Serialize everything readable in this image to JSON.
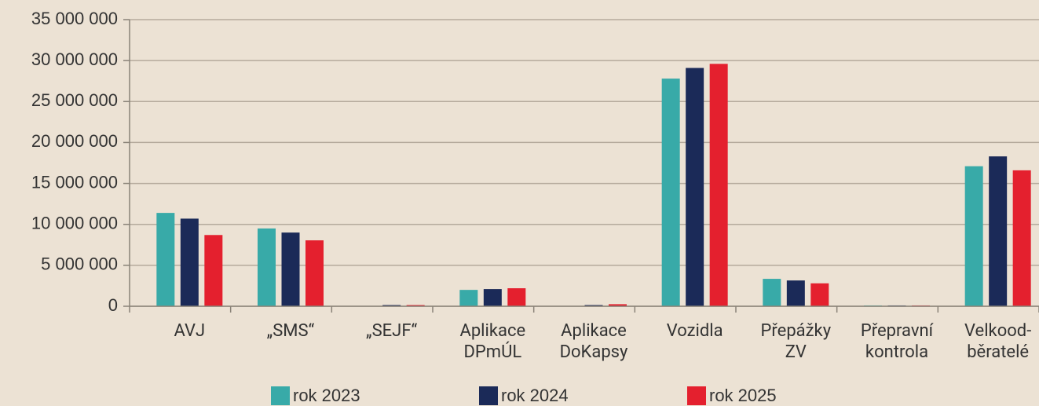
{
  "chart_data": {
    "type": "bar",
    "categories": [
      "AVJ",
      "„SMS“",
      "„SEJF“",
      "Aplikace\nDPmÚL",
      "Aplikace\nDoKapsy",
      "Vozidla",
      "Přepážky\nZV",
      "Přepravní\nkontrola",
      "Velkood-\nběratelé"
    ],
    "series": [
      {
        "name": "rok 2023",
        "color": "#38aaa8",
        "values": [
          11400000,
          9500000,
          0,
          2000000,
          0,
          27800000,
          3350000,
          100000,
          17100000
        ]
      },
      {
        "name": "rok 2024",
        "color": "#1b2a58",
        "values": [
          10700000,
          9000000,
          150000,
          2100000,
          150000,
          29100000,
          3150000,
          100000,
          18300000
        ]
      },
      {
        "name": "rok 2025",
        "color": "#e4202e",
        "values": [
          8700000,
          8050000,
          150000,
          2200000,
          250000,
          29600000,
          2800000,
          100000,
          16600000
        ]
      }
    ],
    "ylim": [
      0,
      35000000
    ],
    "yticks": [
      0,
      {
        "value": 5000000,
        "label": "5 000 000"
      },
      {
        "value": 10000000,
        "label": "10 000 000"
      },
      {
        "value": 15000000,
        "label": "15 000 000"
      },
      {
        "value": 20000000,
        "label": "20 000 000"
      },
      {
        "value": 25000000,
        "label": "25 000 000"
      },
      {
        "value": 30000000,
        "label": "30 000 000"
      },
      {
        "value": 35000000,
        "label": "35 000 000"
      }
    ],
    "grid": true,
    "legend": "bottom"
  }
}
